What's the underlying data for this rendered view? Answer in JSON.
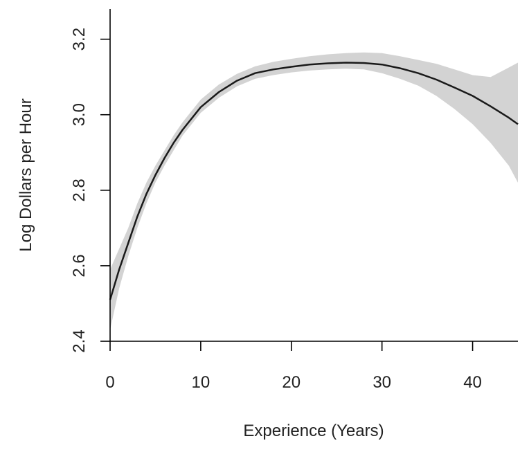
{
  "chart_data": {
    "type": "line",
    "title": "",
    "xlabel": "Experience (Years)",
    "ylabel": "Log Dollars per Hour",
    "xlim": [
      0,
      45
    ],
    "ylim": [
      2.4,
      3.28
    ],
    "x_ticks": [
      0,
      10,
      20,
      30,
      40
    ],
    "x_tick_labels": [
      "0",
      "10",
      "20",
      "30",
      "40"
    ],
    "y_ticks": [
      2.4,
      2.6,
      2.8,
      3.0,
      3.2
    ],
    "y_tick_labels": [
      "2.4",
      "2.6",
      "2.8",
      "3.0",
      "3.2"
    ],
    "grid": false,
    "legend": "none",
    "colors": {
      "line": "#1a1a1a",
      "band": "#d3d3d3",
      "axis": "#000000"
    },
    "series": [
      {
        "kind": "fit",
        "x": [
          0,
          1,
          2,
          3,
          4,
          5,
          6,
          7,
          8,
          10,
          12,
          14,
          16,
          18,
          20,
          22,
          24,
          26,
          28,
          30,
          32,
          34,
          36,
          38,
          40,
          42,
          44,
          45
        ],
        "y": [
          2.51,
          2.59,
          2.66,
          2.73,
          2.79,
          2.84,
          2.885,
          2.925,
          2.96,
          3.02,
          3.06,
          3.09,
          3.11,
          3.12,
          3.127,
          3.133,
          3.136,
          3.138,
          3.137,
          3.133,
          3.123,
          3.11,
          3.093,
          3.072,
          3.05,
          3.022,
          2.992,
          2.975
        ]
      },
      {
        "kind": "confidence-band",
        "x": [
          0,
          1,
          2,
          3,
          4,
          5,
          6,
          7,
          8,
          10,
          12,
          14,
          16,
          18,
          20,
          22,
          24,
          26,
          28,
          30,
          32,
          34,
          36,
          38,
          40,
          42,
          44,
          45
        ],
        "lower": [
          2.43,
          2.54,
          2.625,
          2.7,
          2.765,
          2.82,
          2.865,
          2.905,
          2.945,
          3.005,
          3.045,
          3.075,
          3.095,
          3.105,
          3.112,
          3.117,
          3.12,
          3.122,
          3.12,
          3.11,
          3.095,
          3.077,
          3.05,
          3.015,
          2.975,
          2.925,
          2.865,
          2.82
        ],
        "upper": [
          2.59,
          2.645,
          2.7,
          2.765,
          2.82,
          2.865,
          2.905,
          2.945,
          2.98,
          3.04,
          3.08,
          3.108,
          3.128,
          3.14,
          3.148,
          3.155,
          3.16,
          3.163,
          3.165,
          3.163,
          3.155,
          3.145,
          3.135,
          3.12,
          3.105,
          3.1,
          3.125,
          3.138
        ]
      }
    ]
  }
}
